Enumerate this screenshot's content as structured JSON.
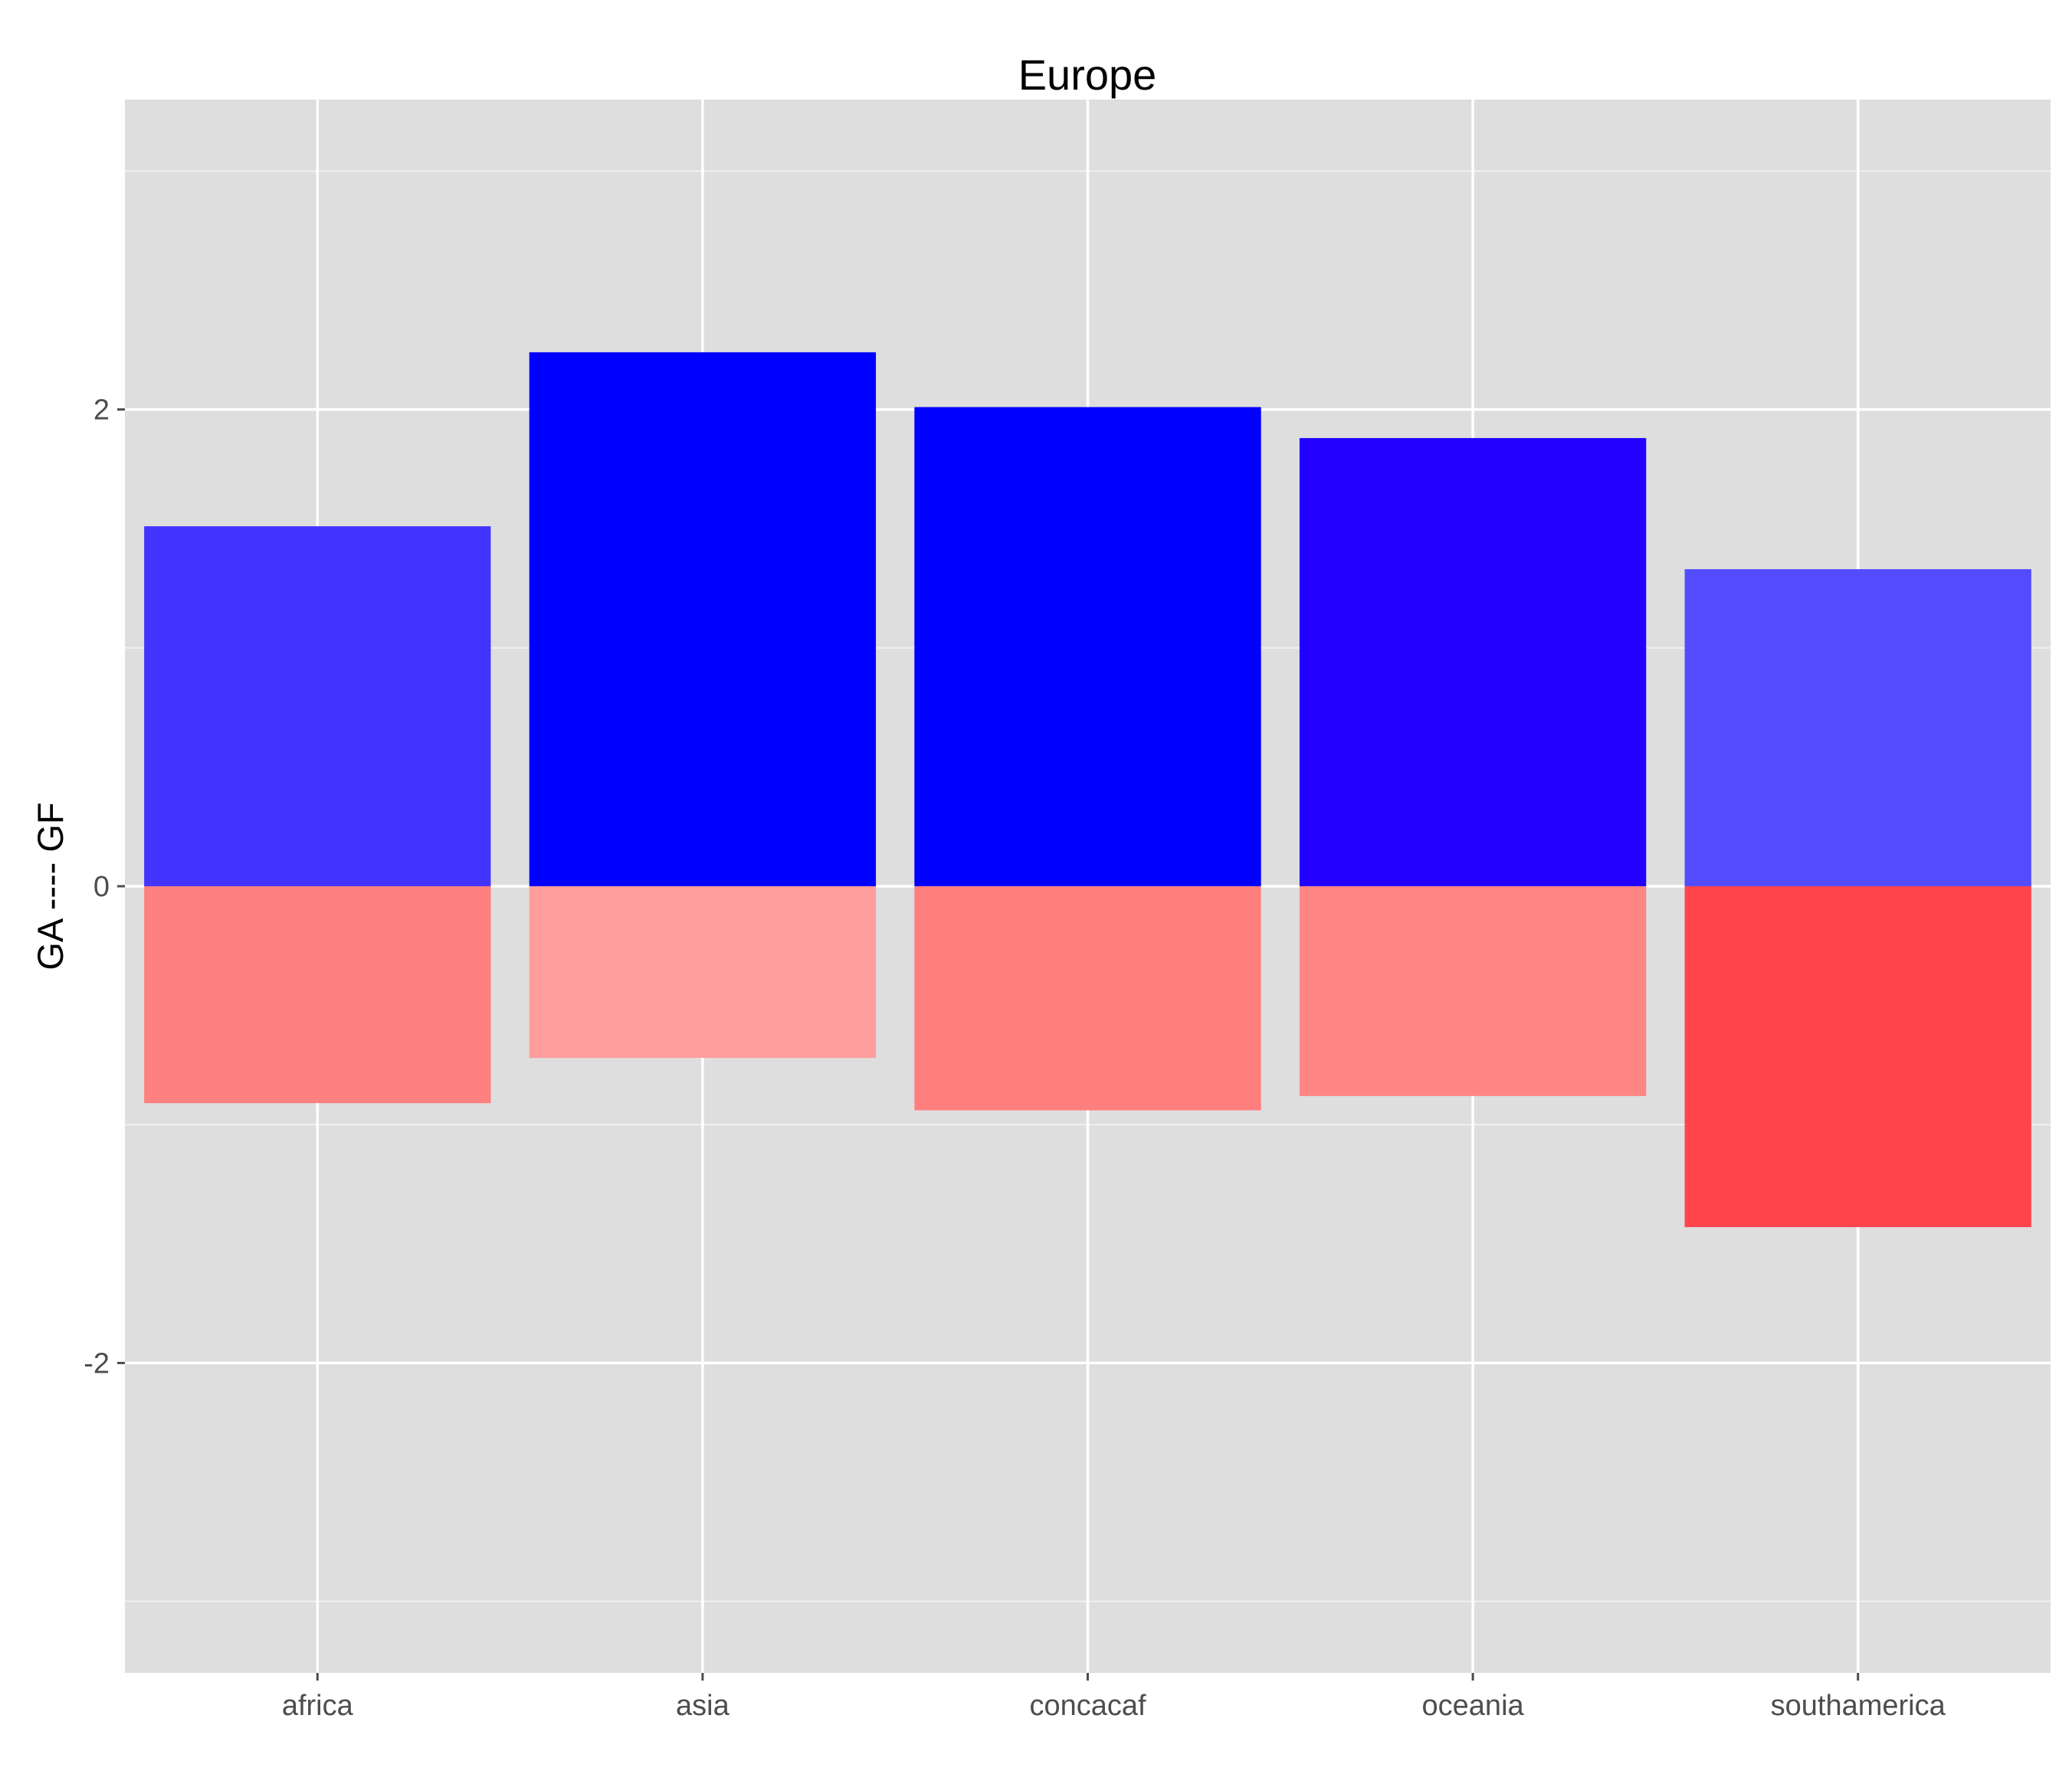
{
  "chart_data": {
    "type": "bar",
    "title": "Europe",
    "xlabel": "",
    "ylabel": "GA ---- GF",
    "categories": [
      "africa",
      "asia",
      "concacaf",
      "oceania",
      "southamerica"
    ],
    "series": [
      {
        "values": [
          1.51,
          2.24,
          2.01,
          1.88,
          1.33
        ],
        "colors": [
          "#4434FF",
          "#0000FF",
          "#0000FF",
          "#2100FF",
          "#534CFF"
        ]
      },
      {
        "values": [
          -0.91,
          -0.72,
          -0.94,
          -0.88,
          -1.43
        ],
        "colors": [
          "#FF8080",
          "#FF9C9C",
          "#FF7F7F",
          "#FF8585",
          "#FF444C"
        ]
      }
    ],
    "ylim": [
      -3.3,
      3.3
    ],
    "yticks": [
      -2,
      0,
      2
    ],
    "ytick_labels": [
      "-2",
      "0",
      "2"
    ],
    "grid": true,
    "legend": "none",
    "panel_background": "#DEDEDE",
    "gridline_color": "#FFFFFF"
  }
}
